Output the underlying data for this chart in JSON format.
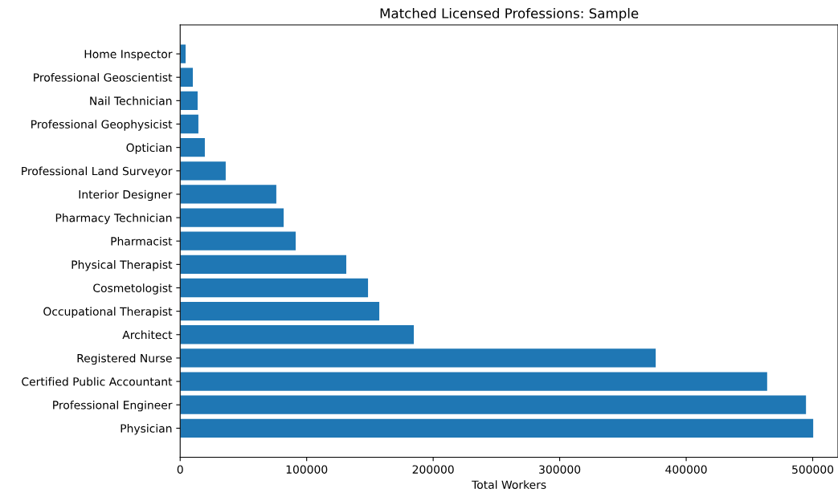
{
  "chart_data": {
    "type": "bar",
    "orientation": "horizontal",
    "title": "Matched Licensed Professions: Sample",
    "xlabel": "Total Workers",
    "categories": [
      "Home Inspector",
      "Professional Geoscientist",
      "Nail Technician",
      "Professional Geophysicist",
      "Optician",
      "Professional Land Surveyor",
      "Interior Designer",
      "Pharmacy Technician",
      "Pharmacist",
      "Physical Therapist",
      "Cosmetologist",
      "Occupational Therapist",
      "Architect",
      "Registered Nurse",
      "Certified Public Accountant",
      "Professional Engineer",
      "Physician"
    ],
    "values": [
      4300,
      10000,
      13800,
      14400,
      19500,
      36000,
      76000,
      81800,
      91300,
      131300,
      148500,
      157400,
      184700,
      375900,
      464000,
      494700,
      500400
    ],
    "color": "#1f77b4",
    "xlim": [
      0,
      520000
    ],
    "xticks": [
      0,
      100000,
      200000,
      300000,
      400000,
      500000
    ],
    "grid": false,
    "legend": false
  }
}
